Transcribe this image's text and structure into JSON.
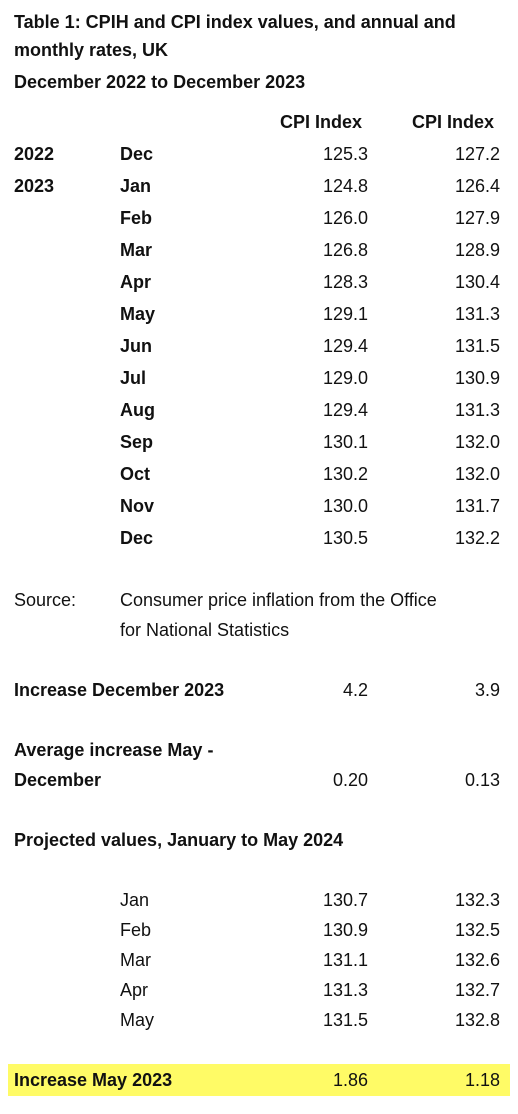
{
  "title": {
    "line1": "Table 1: CPIH and CPI index values, and annual and",
    "line2": "monthly rates, UK",
    "line3": "December 2022 to December 2023"
  },
  "headers": {
    "col1": "CPI Index",
    "col2": "CPI Index"
  },
  "rows": [
    {
      "year": "2022",
      "month": "Dec",
      "v1": "125.3",
      "v2": "127.2"
    },
    {
      "year": "2023",
      "month": "Jan",
      "v1": "124.8",
      "v2": "126.4"
    },
    {
      "year": "",
      "month": "Feb",
      "v1": "126.0",
      "v2": "127.9"
    },
    {
      "year": "",
      "month": "Mar",
      "v1": "126.8",
      "v2": "128.9"
    },
    {
      "year": "",
      "month": "Apr",
      "v1": "128.3",
      "v2": "130.4"
    },
    {
      "year": "",
      "month": "May",
      "v1": "129.1",
      "v2": "131.3"
    },
    {
      "year": "",
      "month": "Jun",
      "v1": "129.4",
      "v2": "131.5"
    },
    {
      "year": "",
      "month": "Jul",
      "v1": "129.0",
      "v2": "130.9"
    },
    {
      "year": "",
      "month": "Aug",
      "v1": "129.4",
      "v2": "131.3"
    },
    {
      "year": "",
      "month": "Sep",
      "v1": "130.1",
      "v2": "132.0"
    },
    {
      "year": "",
      "month": "Oct",
      "v1": "130.2",
      "v2": "132.0"
    },
    {
      "year": "",
      "month": "Nov",
      "v1": "130.0",
      "v2": "131.7"
    },
    {
      "year": "",
      "month": "Dec",
      "v1": "130.5",
      "v2": "132.2"
    }
  ],
  "source": {
    "label": "Source:",
    "line1": "Consumer price inflation from the Office",
    "line2": "for National Statistics"
  },
  "increase_dec": {
    "label": "Increase December 2023",
    "v1": "4.2",
    "v2": "3.9"
  },
  "avg_increase": {
    "label1": "Average increase May -",
    "label2": "December",
    "v1": "0.20",
    "v2": "0.13"
  },
  "projected": {
    "heading": "Projected values, January to May 2024",
    "rows": [
      {
        "month": "Jan",
        "v1": "130.7",
        "v2": "132.3"
      },
      {
        "month": "Feb",
        "v1": "130.9",
        "v2": "132.5"
      },
      {
        "month": "Mar",
        "v1": "131.1",
        "v2": "132.6"
      },
      {
        "month": "Apr",
        "v1": "131.3",
        "v2": "132.7"
      },
      {
        "month": "May",
        "v1": "131.5",
        "v2": "132.8"
      }
    ]
  },
  "increase_may": {
    "label": "Increase May 2023",
    "v1": "1.86",
    "v2": "1.18",
    "highlight_color": "#fffb66"
  }
}
